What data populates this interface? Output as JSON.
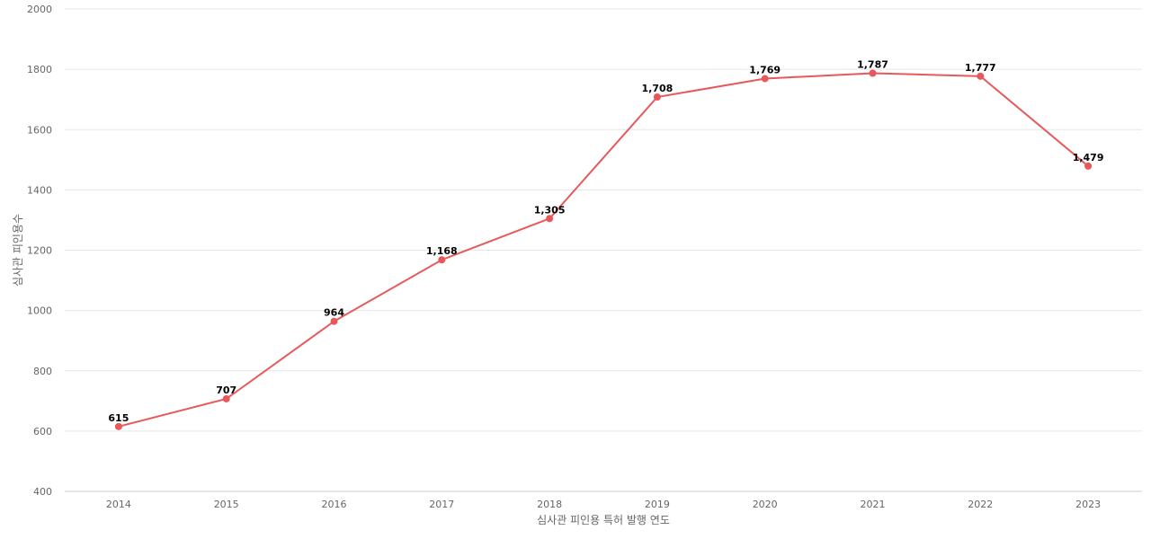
{
  "chart_data": {
    "type": "line",
    "xlabel": "심사관 피인용 특허 발행 연도",
    "ylabel": "심사관 피인용수",
    "ylim": [
      400,
      2000
    ],
    "yticks": [
      400,
      600,
      800,
      1000,
      1200,
      1400,
      1600,
      1800,
      2000
    ],
    "categories": [
      "2014",
      "2015",
      "2016",
      "2017",
      "2018",
      "2019",
      "2020",
      "2021",
      "2022",
      "2023"
    ],
    "values": [
      615,
      707,
      964,
      1168,
      1305,
      1708,
      1769,
      1787,
      1777,
      1479
    ],
    "data_labels": [
      "615",
      "707",
      "964",
      "1,168",
      "1,305",
      "1,708",
      "1,769",
      "1,787",
      "1,777",
      "1,479"
    ],
    "color": "#e8585a",
    "grid": true,
    "legend": "none"
  }
}
